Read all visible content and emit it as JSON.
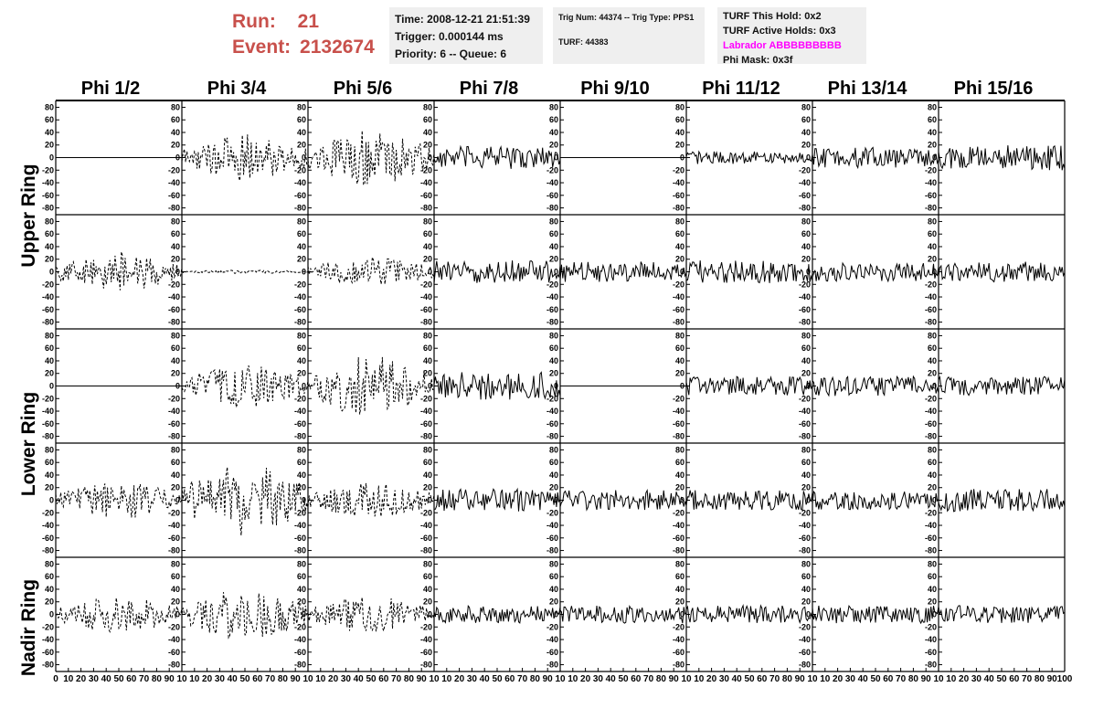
{
  "header": {
    "run_label": "Run:",
    "run_value": "21",
    "event_label": "Event:",
    "event_value": "2132674",
    "time_line": "Time: 2008-12-21 21:51:39",
    "trigger_line": "Trigger: 0.000144 ms",
    "priority_line": "Priority: 6 -- Queue: 6",
    "trig_line": "Trig Num: 44374 -- Trig Type: PPS1",
    "turf_line": "TURF: 44383",
    "turf_hold": "TURF This Hold: 0x2",
    "turf_active": "TURF Active Holds: 0x3",
    "labrador": "Labrador ABBBBBBBBB",
    "phi_mask": "Phi Mask: 0x3f",
    "run_color": "#c8504b",
    "labrador_color": "#ff00ff",
    "box_color": "#efefef"
  },
  "chart_data": {
    "type": "line",
    "columns": [
      "Phi 1/2",
      "Phi 3/4",
      "Phi 5/6",
      "Phi 7/8",
      "Phi 9/10",
      "Phi 11/12",
      "Phi 13/14",
      "Phi 15/16"
    ],
    "ring_labels": [
      "Upper Ring",
      "Lower Ring",
      "Nadir Ring"
    ],
    "rows": 5,
    "ylim": [
      -85,
      85
    ],
    "xlim": [
      0,
      100
    ],
    "y_ticks": [
      -80,
      -60,
      -40,
      -20,
      0,
      20,
      40,
      60,
      80
    ],
    "y_tick_labels": [
      "-80",
      "-60",
      "-40",
      "-20",
      "0",
      "20",
      "40",
      "60",
      "80"
    ],
    "x_ticks": [
      0,
      10,
      20,
      30,
      40,
      50,
      60,
      70,
      80,
      90,
      100
    ],
    "x_tick_labels": [
      "0",
      "10",
      "20",
      "30",
      "40",
      "50",
      "60",
      "70",
      "80",
      "90",
      "100"
    ],
    "panels": [
      {
        "row": 0,
        "col": 0,
        "style": "flat",
        "amp": 0
      },
      {
        "row": 0,
        "col": 1,
        "style": "dashed",
        "amp": 38
      },
      {
        "row": 0,
        "col": 2,
        "style": "dashed",
        "amp": 45
      },
      {
        "row": 0,
        "col": 3,
        "style": "solid",
        "amp": 18
      },
      {
        "row": 0,
        "col": 4,
        "style": "flat",
        "amp": 0
      },
      {
        "row": 0,
        "col": 5,
        "style": "solid",
        "amp": 10
      },
      {
        "row": 0,
        "col": 6,
        "style": "solid",
        "amp": 16
      },
      {
        "row": 0,
        "col": 7,
        "style": "solid",
        "amp": 20
      },
      {
        "row": 1,
        "col": 0,
        "style": "dashed",
        "amp": 32
      },
      {
        "row": 1,
        "col": 1,
        "style": "dashed",
        "amp": 3
      },
      {
        "row": 1,
        "col": 2,
        "style": "dashed",
        "amp": 25
      },
      {
        "row": 1,
        "col": 3,
        "style": "solid",
        "amp": 18
      },
      {
        "row": 1,
        "col": 4,
        "style": "solid",
        "amp": 16
      },
      {
        "row": 1,
        "col": 5,
        "style": "solid",
        "amp": 18
      },
      {
        "row": 1,
        "col": 6,
        "style": "solid",
        "amp": 15
      },
      {
        "row": 1,
        "col": 7,
        "style": "solid",
        "amp": 16
      },
      {
        "row": 2,
        "col": 0,
        "style": "flat",
        "amp": 0
      },
      {
        "row": 2,
        "col": 1,
        "style": "dashed",
        "amp": 35
      },
      {
        "row": 2,
        "col": 2,
        "style": "dashed",
        "amp": 52
      },
      {
        "row": 2,
        "col": 3,
        "style": "solid",
        "amp": 22
      },
      {
        "row": 2,
        "col": 4,
        "style": "flat",
        "amp": 0
      },
      {
        "row": 2,
        "col": 5,
        "style": "solid",
        "amp": 15
      },
      {
        "row": 2,
        "col": 6,
        "style": "solid",
        "amp": 16
      },
      {
        "row": 2,
        "col": 7,
        "style": "solid",
        "amp": 15
      },
      {
        "row": 3,
        "col": 0,
        "style": "dashed",
        "amp": 30
      },
      {
        "row": 3,
        "col": 1,
        "style": "dashed",
        "amp": 60
      },
      {
        "row": 3,
        "col": 2,
        "style": "dashed",
        "amp": 28
      },
      {
        "row": 3,
        "col": 3,
        "style": "solid",
        "amp": 18
      },
      {
        "row": 3,
        "col": 4,
        "style": "solid",
        "amp": 16
      },
      {
        "row": 3,
        "col": 5,
        "style": "solid",
        "amp": 16
      },
      {
        "row": 3,
        "col": 6,
        "style": "solid",
        "amp": 15
      },
      {
        "row": 3,
        "col": 7,
        "style": "solid",
        "amp": 18
      },
      {
        "row": 4,
        "col": 0,
        "style": "dashed",
        "amp": 30
      },
      {
        "row": 4,
        "col": 1,
        "style": "dashed",
        "amp": 42
      },
      {
        "row": 4,
        "col": 2,
        "style": "dashed",
        "amp": 30
      },
      {
        "row": 4,
        "col": 3,
        "style": "solid",
        "amp": 14
      },
      {
        "row": 4,
        "col": 4,
        "style": "solid",
        "amp": 14
      },
      {
        "row": 4,
        "col": 5,
        "style": "solid",
        "amp": 14
      },
      {
        "row": 4,
        "col": 6,
        "style": "solid",
        "amp": 14
      },
      {
        "row": 4,
        "col": 7,
        "style": "solid",
        "amp": 14
      }
    ]
  }
}
